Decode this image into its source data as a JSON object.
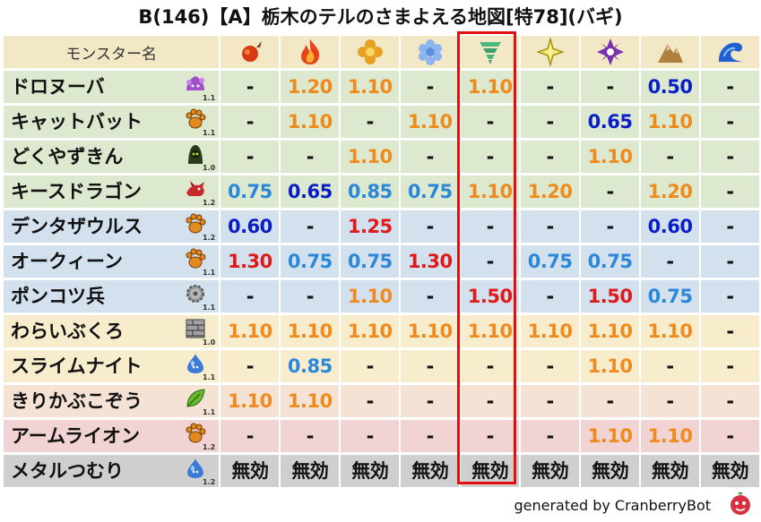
{
  "title": "B(146)【A】栃木のテルのさまよえる地図[特78](バギ)",
  "header_label": "モンスター名",
  "elements": [
    {
      "name": "fire-ball-icon",
      "color": "#d83a10"
    },
    {
      "name": "flame-icon",
      "color": "#e8421a"
    },
    {
      "name": "explosion-icon",
      "color": "#e8a020"
    },
    {
      "name": "ice-icon",
      "color": "#5a90e0"
    },
    {
      "name": "wind-tornado-icon",
      "color": "#3aa070"
    },
    {
      "name": "lightning-icon",
      "color": "#e0d020"
    },
    {
      "name": "darkness-icon",
      "color": "#7a30b0"
    },
    {
      "name": "earth-rock-icon",
      "color": "#b08040"
    },
    {
      "name": "water-wave-icon",
      "color": "#2060d0"
    }
  ],
  "highlighted_column": 4,
  "rows": [
    {
      "name": "ドロヌーバ",
      "bg": "g",
      "icon": "slime-purple-icon",
      "level": "1.1",
      "values": [
        "-",
        "1.20",
        "1.10",
        "-",
        "1.10",
        "-",
        "-",
        "0.50",
        "-"
      ],
      "colors": [
        "dash",
        "orange",
        "orange",
        "dash",
        "orange",
        "dash",
        "dash",
        "blue",
        "dash"
      ]
    },
    {
      "name": "キャットバット",
      "bg": "g",
      "icon": "paw-icon",
      "level": "1.1",
      "values": [
        "-",
        "1.10",
        "-",
        "1.10",
        "-",
        "-",
        "0.65",
        "1.10",
        "-"
      ],
      "colors": [
        "dash",
        "orange",
        "dash",
        "orange",
        "dash",
        "dash",
        "blue",
        "orange",
        "dash"
      ]
    },
    {
      "name": "どくやずきん",
      "bg": "g",
      "icon": "hooded-figure-icon",
      "level": "1.0",
      "values": [
        "-",
        "-",
        "1.10",
        "-",
        "-",
        "-",
        "1.10",
        "-",
        "-"
      ],
      "colors": [
        "dash",
        "dash",
        "orange",
        "dash",
        "dash",
        "dash",
        "orange",
        "dash",
        "dash"
      ]
    },
    {
      "name": "キースドラゴン",
      "bg": "g",
      "icon": "dragon-icon",
      "level": "1.2",
      "values": [
        "0.75",
        "0.65",
        "0.85",
        "0.75",
        "1.10",
        "1.20",
        "-",
        "1.20",
        "-"
      ],
      "colors": [
        "lightblue",
        "blue",
        "lightblue",
        "lightblue",
        "orange",
        "orange",
        "dash",
        "orange",
        "dash"
      ]
    },
    {
      "name": "デンタザウルス",
      "bg": "b",
      "icon": "paw-icon",
      "level": "1.2",
      "values": [
        "0.60",
        "-",
        "1.25",
        "-",
        "-",
        "-",
        "-",
        "0.60",
        "-"
      ],
      "colors": [
        "blue",
        "dash",
        "red",
        "dash",
        "dash",
        "dash",
        "dash",
        "blue",
        "dash"
      ]
    },
    {
      "name": "オークィーン",
      "bg": "b",
      "icon": "paw-icon",
      "level": "1.1",
      "values": [
        "1.30",
        "0.75",
        "0.75",
        "1.30",
        "-",
        "0.75",
        "0.75",
        "-",
        "-"
      ],
      "colors": [
        "red",
        "lightblue",
        "lightblue",
        "red",
        "dash",
        "lightblue",
        "lightblue",
        "dash",
        "dash"
      ]
    },
    {
      "name": "ポンコツ兵",
      "bg": "b",
      "icon": "gear-icon",
      "level": "1.1",
      "values": [
        "-",
        "-",
        "1.10",
        "-",
        "1.50",
        "-",
        "1.50",
        "0.75",
        "-"
      ],
      "colors": [
        "dash",
        "dash",
        "orange",
        "dash",
        "red",
        "dash",
        "red",
        "lightblue",
        "dash"
      ]
    },
    {
      "name": "わらいぶくろ",
      "bg": "y",
      "icon": "brick-icon",
      "level": "1.0",
      "values": [
        "1.10",
        "1.10",
        "1.10",
        "1.10",
        "1.10",
        "1.10",
        "1.10",
        "1.10",
        "-"
      ],
      "colors": [
        "orange",
        "orange",
        "orange",
        "orange",
        "orange",
        "orange",
        "orange",
        "orange",
        "dash"
      ]
    },
    {
      "name": "スライムナイト",
      "bg": "y",
      "icon": "slime-blue-icon",
      "level": "1.1",
      "values": [
        "-",
        "0.85",
        "-",
        "-",
        "-",
        "-",
        "1.10",
        "-",
        "-"
      ],
      "colors": [
        "dash",
        "lightblue",
        "dash",
        "dash",
        "dash",
        "dash",
        "orange",
        "dash",
        "dash"
      ]
    },
    {
      "name": "きりかぶこぞう",
      "bg": "k",
      "icon": "leaf-icon",
      "level": "1.1",
      "values": [
        "1.10",
        "1.10",
        "-",
        "-",
        "-",
        "-",
        "-",
        "-",
        "-"
      ],
      "colors": [
        "orange",
        "orange",
        "dash",
        "dash",
        "dash",
        "dash",
        "dash",
        "dash",
        "dash"
      ]
    },
    {
      "name": "アームライオン",
      "bg": "p",
      "icon": "paw-icon",
      "level": "1.2",
      "values": [
        "-",
        "-",
        "-",
        "-",
        "-",
        "-",
        "1.10",
        "1.10",
        "-"
      ],
      "colors": [
        "dash",
        "dash",
        "dash",
        "dash",
        "dash",
        "dash",
        "orange",
        "orange",
        "dash"
      ]
    },
    {
      "name": "メタルつむり",
      "bg": "s",
      "icon": "slime-blue-icon",
      "level": "1.2",
      "values": [
        "無効",
        "無効",
        "無効",
        "無効",
        "無効",
        "無効",
        "無効",
        "無効",
        "無効"
      ],
      "colors": [
        "black",
        "black",
        "black",
        "black",
        "black",
        "black",
        "black",
        "black",
        "black"
      ]
    }
  ],
  "footer": "generated by CranberryBot",
  "footer_icon": "cranberry-bot-icon"
}
